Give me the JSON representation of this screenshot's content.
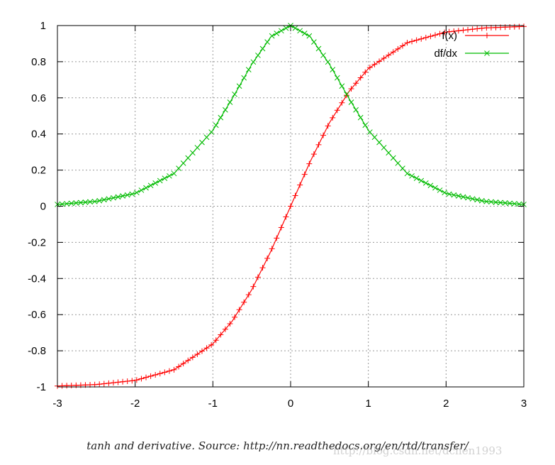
{
  "chart_data": {
    "type": "line",
    "xlim": [
      -3,
      3
    ],
    "ylim": [
      -1,
      1
    ],
    "x_ticks": [
      "-3",
      "-2",
      "-1",
      "0",
      "1",
      "2",
      "3"
    ],
    "y_ticks": [
      "1",
      "0.8",
      "0.6",
      "0.4",
      "0.2",
      "0",
      "-0.2",
      "-0.4",
      "-0.6",
      "-0.8",
      "-1"
    ],
    "grid": true,
    "legend_position": "top-right",
    "series": [
      {
        "name": "f(x)",
        "color": "#ff0000",
        "marker": "plus",
        "x": [
          -3,
          -2.5,
          -2,
          -1.5,
          -1,
          -0.75,
          -0.5,
          -0.25,
          0,
          0.25,
          0.5,
          0.75,
          1,
          1.5,
          2,
          2.5,
          3
        ],
        "y": [
          -0.995,
          -0.987,
          -0.964,
          -0.905,
          -0.762,
          -0.635,
          -0.462,
          -0.245,
          0,
          0.245,
          0.462,
          0.635,
          0.762,
          0.905,
          0.964,
          0.987,
          0.995
        ]
      },
      {
        "name": "df/dx",
        "color": "#00bb00",
        "marker": "cross",
        "x": [
          -3,
          -2.5,
          -2,
          -1.5,
          -1,
          -0.75,
          -0.5,
          -0.25,
          0,
          0.25,
          0.5,
          0.75,
          1,
          1.5,
          2,
          2.5,
          3
        ],
        "y": [
          0.01,
          0.027,
          0.071,
          0.181,
          0.42,
          0.597,
          0.786,
          0.94,
          1,
          0.94,
          0.786,
          0.597,
          0.42,
          0.181,
          0.071,
          0.027,
          0.01
        ]
      }
    ]
  },
  "caption": "tanh and derivative. Source: http://nn.readthedocs.org/en/rtd/transfer/",
  "watermark": "http://blog.csdn.net/dchen1993"
}
